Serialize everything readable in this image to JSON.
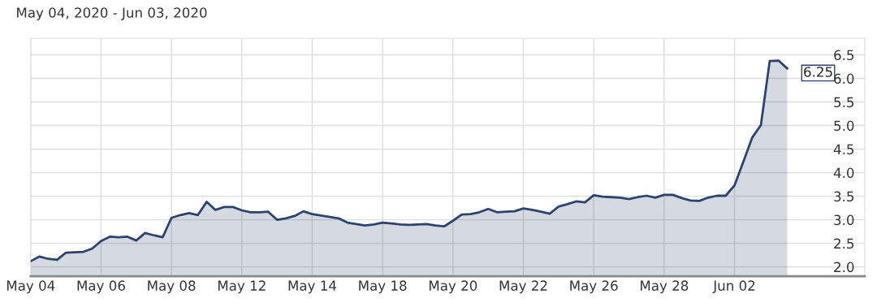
{
  "chart_data": {
    "type": "area",
    "title": "May 04, 2020 - Jun 03, 2020",
    "categories": [
      "May 04",
      null,
      null,
      null,
      null,
      null,
      null,
      null,
      "May 06",
      null,
      null,
      null,
      null,
      null,
      null,
      null,
      "May 08",
      null,
      null,
      null,
      null,
      null,
      null,
      null,
      "May 12",
      null,
      null,
      null,
      null,
      null,
      null,
      null,
      "May 14",
      null,
      null,
      null,
      null,
      null,
      null,
      null,
      "May 18",
      null,
      null,
      null,
      null,
      null,
      null,
      null,
      "May 20",
      null,
      null,
      null,
      null,
      null,
      null,
      null,
      "May 22",
      null,
      null,
      null,
      null,
      null,
      null,
      null,
      "May 26",
      null,
      null,
      null,
      null,
      null,
      null,
      null,
      "May 28",
      null,
      null,
      null,
      null,
      null,
      null,
      null,
      "Jun 02",
      null,
      null,
      null,
      null,
      null,
      null,
      null,
      null
    ],
    "series": [
      {
        "color": "#2c4370",
        "values": [
          2.12,
          2.22,
          2.17,
          2.15,
          2.3,
          2.31,
          2.32,
          2.39,
          2.55,
          2.64,
          2.63,
          2.64,
          2.56,
          2.72,
          2.67,
          2.63,
          3.04,
          3.1,
          3.14,
          3.1,
          3.38,
          3.21,
          3.27,
          3.27,
          3.2,
          3.16,
          3.16,
          3.17,
          3.0,
          3.03,
          3.08,
          3.18,
          3.12,
          3.09,
          3.06,
          3.03,
          2.94,
          2.91,
          2.88,
          2.9,
          2.94,
          2.92,
          2.9,
          2.89,
          2.9,
          2.91,
          2.88,
          2.86,
          2.98,
          3.11,
          3.12,
          3.16,
          3.23,
          3.16,
          3.17,
          3.18,
          3.24,
          3.21,
          3.17,
          3.13,
          3.28,
          3.33,
          3.39,
          3.37,
          3.52,
          3.49,
          3.48,
          3.47,
          3.44,
          3.48,
          3.51,
          3.47,
          3.53,
          3.53,
          3.46,
          3.41,
          3.4,
          3.47,
          3.51,
          3.51,
          3.73,
          4.23,
          4.74,
          5.01,
          6.37,
          6.38,
          6.21,
          null,
          null
        ]
      }
    ],
    "ylim": [
      1.8,
      6.85
    ],
    "yticks": [
      {
        "value": 2,
        "label": "2.0"
      },
      {
        "value": 2.5,
        "label": "2.5"
      },
      {
        "value": 3,
        "label": "3.0"
      },
      {
        "value": 3.5,
        "label": "3.5"
      },
      {
        "value": 4,
        "label": "4.0"
      },
      {
        "value": 4.5,
        "label": "4.5"
      },
      {
        "value": 5,
        "label": "5.0"
      },
      {
        "value": 5.5,
        "label": "5.5"
      },
      {
        "value": 6,
        "label": "6.0"
      },
      {
        "value": 6.5,
        "label": "6.5"
      }
    ],
    "annotations": [
      "6.25"
    ],
    "grid": true,
    "legend": false
  }
}
